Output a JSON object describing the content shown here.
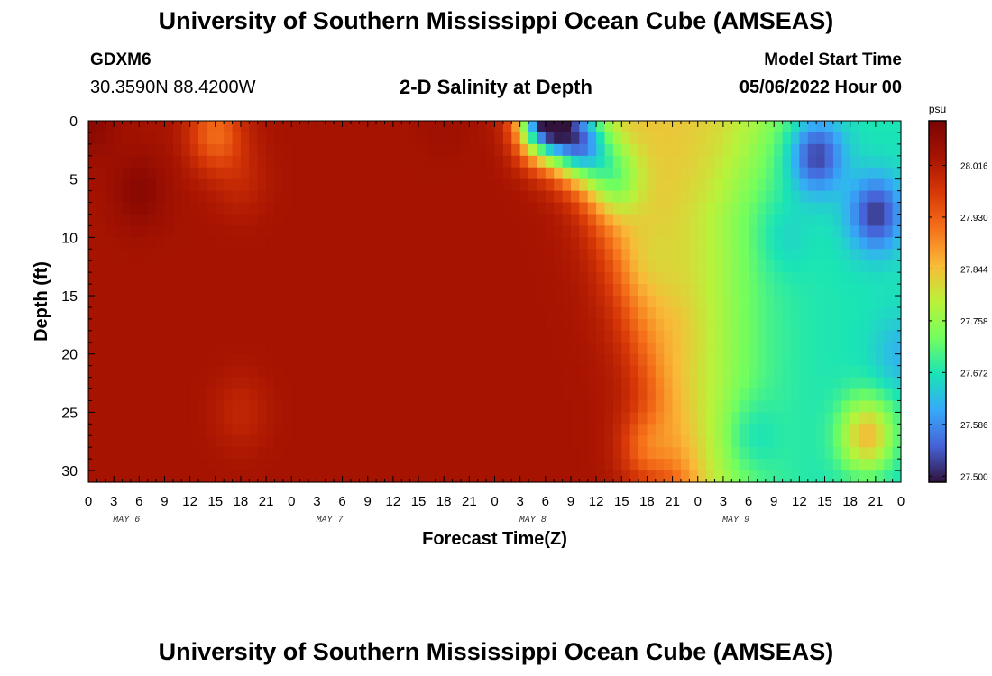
{
  "header": {
    "title": "University of Southern Mississippi Ocean Cube (AMSEAS)",
    "station": "GDXM6",
    "location": "30.3590N  88.4200W",
    "subtitle": "2-D Salinity at Depth",
    "model_start_label": "Model Start Time",
    "model_start_value": "05/06/2022 Hour 00"
  },
  "footer": {
    "title": "University of Southern Mississippi Ocean Cube (AMSEAS)"
  },
  "chart_data": {
    "type": "heatmap",
    "xlabel": "Forecast Time(Z)",
    "ylabel": "Depth (ft)",
    "x_tick_labels": [
      "0",
      "3",
      "6",
      "9",
      "12",
      "15",
      "18",
      "21",
      "0",
      "3",
      "6",
      "9",
      "12",
      "15",
      "18",
      "21",
      "0",
      "3",
      "6",
      "9",
      "12",
      "15",
      "18",
      "21",
      "0",
      "3",
      "6",
      "9",
      "12",
      "15",
      "18",
      "21",
      "0"
    ],
    "date_labels": [
      "MAY 6",
      "MAY 7",
      "MAY 8",
      "MAY 9"
    ],
    "x_range_hours": [
      0,
      96
    ],
    "y_ticks": [
      0,
      5,
      10,
      15,
      20,
      25,
      30
    ],
    "y_range": [
      0,
      31
    ],
    "y_inverted": true,
    "colorbar": {
      "unit": "psu",
      "min": 27.49,
      "max": 28.09,
      "ticks": [
        28.016,
        27.93,
        27.844,
        27.758,
        27.672,
        27.586,
        27.5
      ],
      "tick_labels": [
        "28.016",
        "27.930",
        "27.844",
        "27.758",
        "27.672",
        "27.586",
        "27.500"
      ]
    },
    "colors": {
      "min": "#30123b",
      "max": "#7a0403"
    },
    "features": [
      {
        "hour": 0,
        "depth": 0,
        "value": 28.07
      },
      {
        "hour": 6,
        "depth": 6,
        "value": 28.07
      },
      {
        "hour": 15,
        "depth": 1,
        "value": 27.92
      },
      {
        "hour": 18,
        "depth": 5,
        "value": 28.0
      },
      {
        "hour": 18,
        "depth": 25,
        "value": 28.0
      },
      {
        "hour": 42,
        "depth": 0,
        "value": 28.04
      },
      {
        "hour": 54,
        "depth": 0,
        "value": 27.5
      },
      {
        "hour": 58,
        "depth": 2,
        "value": 27.62
      },
      {
        "hour": 62,
        "depth": 5,
        "value": 27.74
      },
      {
        "hour": 66,
        "depth": 12,
        "value": 27.83
      },
      {
        "hour": 70,
        "depth": 18,
        "value": 27.84
      },
      {
        "hour": 66,
        "depth": 28,
        "value": 27.9
      },
      {
        "hour": 78,
        "depth": 27,
        "value": 27.68
      },
      {
        "hour": 82,
        "depth": 10,
        "value": 27.66
      },
      {
        "hour": 86,
        "depth": 3,
        "value": 27.53
      },
      {
        "hour": 93,
        "depth": 8,
        "value": 27.52
      },
      {
        "hour": 92,
        "depth": 27,
        "value": 27.85
      },
      {
        "hour": 96,
        "depth": 20,
        "value": 27.62
      },
      {
        "hour": 96,
        "depth": 30,
        "value": 27.66
      }
    ]
  }
}
